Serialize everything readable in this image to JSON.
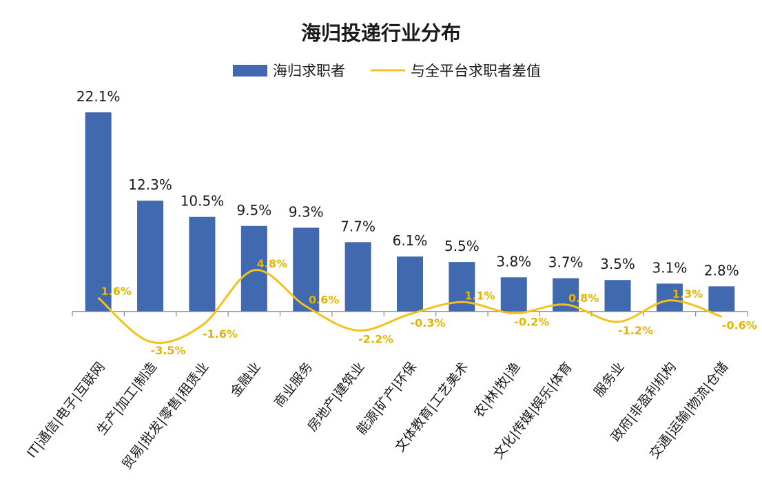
{
  "chart_data": {
    "type": "bar",
    "title": "海归投递行业分布",
    "categories": [
      "IT|通信|电子|互联网",
      "生产|加工|制造",
      "贸易|批发|零售|租赁业",
      "金融业",
      "商业服务",
      "房地产|建筑业",
      "能源|矿产|环保",
      "文体教育|工艺美术",
      "农|林|牧|渔",
      "文化|传媒|娱乐|体育",
      "服务业",
      "政府|非盈利机构",
      "交通|运输|物流|仓储"
    ],
    "series": [
      {
        "name": "海归求职者",
        "type": "bar",
        "color": "#4169b0",
        "values": [
          22.1,
          12.3,
          10.5,
          9.5,
          9.3,
          7.7,
          6.1,
          5.5,
          3.8,
          3.7,
          3.5,
          3.1,
          2.8
        ],
        "labels": [
          "22.1%",
          "12.3%",
          "10.5%",
          "9.5%",
          "9.3%",
          "7.7%",
          "6.1%",
          "5.5%",
          "3.8%",
          "3.7%",
          "3.5%",
          "3.1%",
          "2.8%"
        ]
      },
      {
        "name": "与全平台求职者差值",
        "type": "line",
        "color": "#f2c21b",
        "values": [
          1.6,
          -3.5,
          -1.6,
          4.8,
          0.6,
          -2.2,
          -0.3,
          1.1,
          -0.2,
          0.8,
          -1.2,
          1.3,
          -0.6
        ],
        "labels": [
          "1.6%",
          "-3.5%",
          "-1.6%",
          "4.8%",
          "0.6%",
          "-2.2%",
          "-0.3%",
          "1.1%",
          "-0.2%",
          "0.8%",
          "-1.2%",
          "1.3%",
          "-0.6%"
        ]
      }
    ],
    "ylim": [
      -5,
      22.1
    ],
    "grid": false,
    "legend": "top-center"
  }
}
